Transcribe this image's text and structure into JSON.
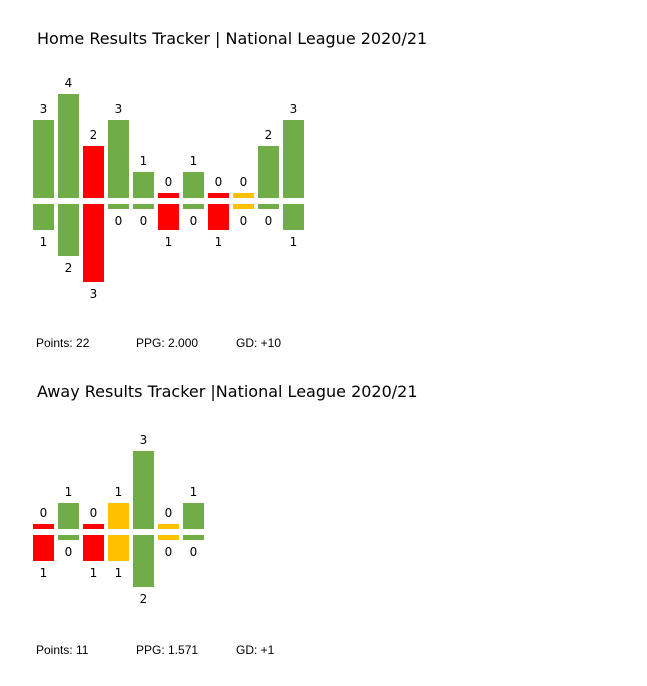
{
  "colors": {
    "win": "#70AD47",
    "loss": "#FF0000",
    "draw": "#FFC000"
  },
  "home": {
    "title": "Home Results Tracker | National League 2020/21",
    "points": "Points: 22",
    "ppg": "PPG: 2.000",
    "gd": "GD: +10"
  },
  "away": {
    "title": "Away Results Tracker |National League 2020/21",
    "points": "Points: 11",
    "ppg": "PPG: 1.571",
    "gd": "GD: +1"
  },
  "chart_data": [
    {
      "type": "bar",
      "title": "Home Results Tracker | National League 2020/21",
      "series": [
        {
          "name": "",
          "values": [
            3,
            4,
            2,
            3,
            1,
            0,
            1,
            0,
            0,
            2,
            3
          ]
        },
        {
          "name": "",
          "values": [
            1,
            2,
            3,
            0,
            0,
            1,
            0,
            1,
            0,
            0,
            1
          ]
        }
      ],
      "results": [
        "W",
        "W",
        "L",
        "W",
        "W",
        "L",
        "W",
        "L",
        "D",
        "W",
        "W"
      ]
    },
    {
      "type": "bar",
      "title": "Away Results Tracker |National League 2020/21",
      "series": [
        {
          "name": "",
          "values": [
            0,
            1,
            0,
            1,
            3,
            0,
            1
          ]
        },
        {
          "name": "",
          "values": [
            1,
            0,
            1,
            1,
            2,
            0,
            0
          ]
        }
      ],
      "results": [
        "L",
        "W",
        "L",
        "D",
        "W",
        "D",
        "W"
      ]
    }
  ]
}
